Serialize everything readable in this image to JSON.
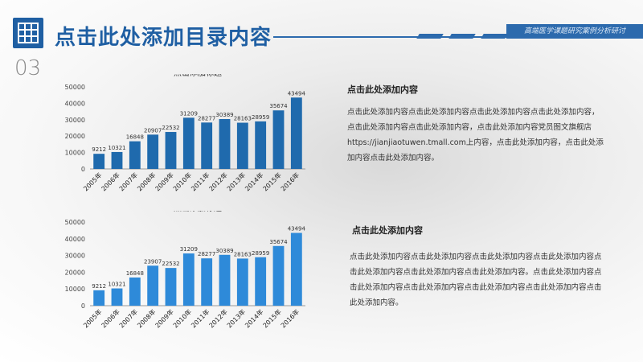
{
  "header": {
    "title": "点击此处添加目录内容",
    "section_number": "03",
    "course_label": "高端医学课题研究案例分析研讨"
  },
  "colors": {
    "accent": "#1f5fa3",
    "bar_dark": "#1f6aad",
    "bar_light": "#2e8ad9"
  },
  "chart_data": [
    {
      "type": "bar",
      "title": "点击添加标题",
      "categories": [
        "2005年",
        "2006年",
        "2007年",
        "2008年",
        "2009年",
        "2010年",
        "2011年",
        "2012年",
        "2013年",
        "2014年",
        "2015年",
        "2016年"
      ],
      "series": [
        {
          "values": [
            9212,
            10321,
            16848,
            20907,
            22532,
            31209,
            28277,
            30389,
            28163,
            28959,
            35674,
            43494
          ]
        }
      ],
      "ylim": [
        0,
        50000
      ],
      "yticks": [
        "0",
        "10000",
        "20000",
        "30000",
        "40000",
        "50000"
      ],
      "data_labels": [
        "9212",
        "10321",
        "16848",
        "20907",
        "22532",
        "31209",
        "28277",
        "30389",
        "28163",
        "28959",
        "35674",
        "43494"
      ],
      "xlabel": "",
      "ylabel": ""
    },
    {
      "type": "bar",
      "title": "点击添加标题",
      "categories": [
        "2005年",
        "2006年",
        "2007年",
        "2008年",
        "2009年",
        "2010年",
        "2011年",
        "2012年",
        "2013年",
        "2014年",
        "2015年",
        "2016年"
      ],
      "series": [
        {
          "values": [
            9212,
            10321,
            16848,
            23907,
            22532,
            31209,
            28277,
            30389,
            28163,
            28959,
            35674,
            43494
          ]
        }
      ],
      "ylim": [
        0,
        50000
      ],
      "yticks": [
        "0",
        "10000",
        "20000",
        "30000",
        "40000",
        "50000"
      ],
      "data_labels": [
        "9212",
        "10321",
        "16848",
        "23907",
        "22532",
        "31209",
        "28277",
        "30389",
        "28163",
        "28959",
        "35674",
        "43494"
      ],
      "xlabel": "",
      "ylabel": ""
    }
  ],
  "text_blocks": [
    {
      "heading": "点击此处添加内容",
      "body": "点击此处添加内容点击此处添加内容点击此处添加内容点击此处添加内容，点击此处添加内容点击此处添加内容，点击此处添加内容党员图文旗舰店https://jianjiaotuwen.tmall.com上内容，点击此处添加内容，点击此处添加内容点击此处添加内容。"
    },
    {
      "heading": "点击此处添加内容",
      "body": "点击此处添加内容点击此处添加内容点击此处添加内容点击此处添加内容点击此处添加内容点击此处添加内容点击此处添加内容。点击此处添加内容点击此处添加内容点击此处添加内容点击此处添加内容点击此处添加内容点击此处添加内容。"
    }
  ]
}
